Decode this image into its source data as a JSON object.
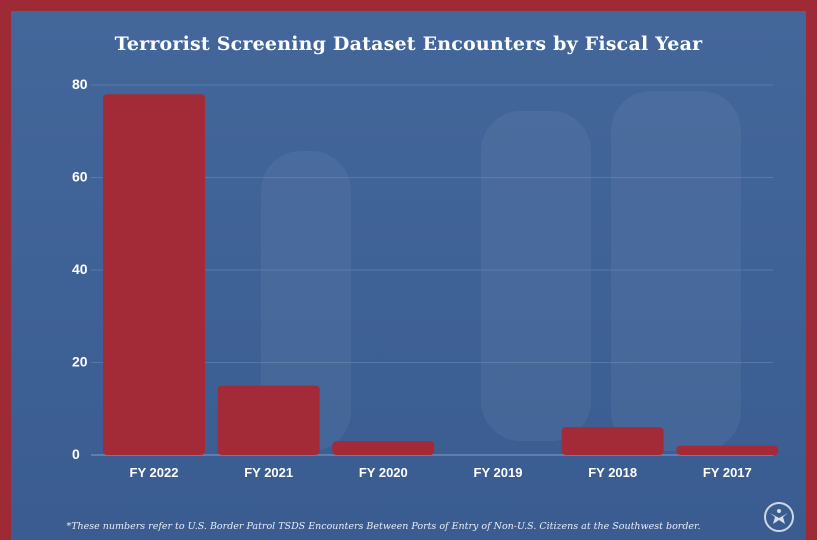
{
  "chart_data": {
    "type": "bar",
    "title": "Terrorist Screening Dataset Encounters by Fiscal Year",
    "categories": [
      "FY 2022",
      "FY 2021",
      "FY 2020",
      "FY 2019",
      "FY 2018",
      "FY 2017"
    ],
    "values": [
      78,
      15,
      3,
      0,
      6,
      2
    ],
    "ylim": [
      0,
      80
    ],
    "yticks": [
      "0",
      "20",
      "40",
      "60",
      "80"
    ],
    "grid": true,
    "xlabel": "",
    "ylabel": "",
    "bar_color": "#a32a37",
    "grid_color": "#7b97bf"
  },
  "footnote": "*These numbers refer to U.S. Border Patrol TSDS Encounters Between Ports of Entry of Non-U.S. Citizens at the Southwest border.",
  "logo": {
    "icon": "eagle-seal-icon"
  }
}
